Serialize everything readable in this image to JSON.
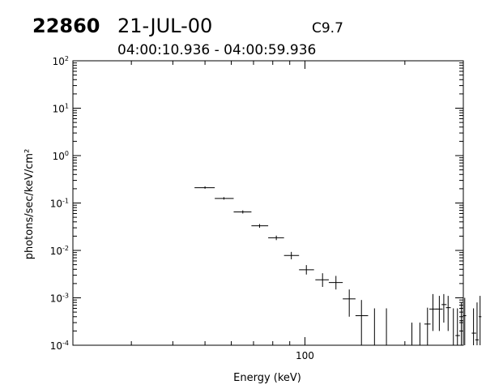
{
  "header": {
    "event_id": "22860",
    "date": "21-JUL-00",
    "goes_class": "C9.7",
    "time_range": "04:00:10.936 - 04:00:59.936"
  },
  "chart_data": {
    "type": "scatter",
    "title": "",
    "xlabel": "Energy (keV)",
    "ylabel": "photons/sec/keV/cm²",
    "x_scale": "log",
    "y_scale": "log",
    "xlim": [
      20,
      300
    ],
    "ylim": [
      0.0001,
      100
    ],
    "x_tick_labels": [
      "100"
    ],
    "y_tick_labels": [
      {
        "base": "10",
        "exp": "-4",
        "value": 0.0001
      },
      {
        "base": "10",
        "exp": "-3",
        "value": 0.001
      },
      {
        "base": "10",
        "exp": "-2",
        "value": 0.01
      },
      {
        "base": "10",
        "exp": "-1",
        "value": 0.1
      },
      {
        "base": "10",
        "exp": "0",
        "value": 1
      },
      {
        "base": "10",
        "exp": "1",
        "value": 10
      },
      {
        "base": "10",
        "exp": "2",
        "value": 100
      }
    ],
    "grid": false,
    "legend": "none",
    "series": [
      {
        "points": [
          {
            "x": 50,
            "x_lo": 46.5,
            "x_hi": 53.5,
            "y": 0.21,
            "y_lo": 0.2,
            "y_hi": 0.225
          },
          {
            "x": 57,
            "x_lo": 53.5,
            "x_hi": 61,
            "y": 0.125,
            "y_lo": 0.118,
            "y_hi": 0.133
          },
          {
            "x": 65,
            "x_lo": 61,
            "x_hi": 69,
            "y": 0.065,
            "y_lo": 0.06,
            "y_hi": 0.07
          },
          {
            "x": 73,
            "x_lo": 69,
            "x_hi": 77.5,
            "y": 0.033,
            "y_lo": 0.03,
            "y_hi": 0.036
          },
          {
            "x": 82,
            "x_lo": 77.5,
            "x_hi": 86.5,
            "y": 0.0185,
            "y_lo": 0.0165,
            "y_hi": 0.0205
          },
          {
            "x": 91,
            "x_lo": 86.5,
            "x_hi": 96,
            "y": 0.0078,
            "y_lo": 0.0065,
            "y_hi": 0.0093
          },
          {
            "x": 101,
            "x_lo": 96,
            "x_hi": 106.5,
            "y": 0.0039,
            "y_lo": 0.0031,
            "y_hi": 0.0049
          },
          {
            "x": 113,
            "x_lo": 107.5,
            "x_hi": 118,
            "y": 0.0024,
            "y_lo": 0.0017,
            "y_hi": 0.0033
          },
          {
            "x": 124,
            "x_lo": 118,
            "x_hi": 130,
            "y": 0.0021,
            "y_lo": 0.0015,
            "y_hi": 0.0029
          },
          {
            "x": 136,
            "x_lo": 130,
            "x_hi": 142,
            "y": 0.00095,
            "y_lo": 0.0004,
            "y_hi": 0.0015
          },
          {
            "x": 148,
            "x_lo": 142,
            "x_hi": 155,
            "y": 0.00042,
            "y_lo": 0.0001,
            "y_hi": 0.0009
          },
          {
            "x": 162,
            "y": 0.0001,
            "y_lo": 0.0001,
            "y_hi": 0.0006
          },
          {
            "x": 176,
            "y": 0.0001,
            "y_lo": 0.0001,
            "y_hi": 0.0006
          },
          {
            "x": 210,
            "y": 0.0001,
            "y_lo": 0.0001,
            "y_hi": 0.0003
          },
          {
            "x": 222,
            "y": 0.0001,
            "y_lo": 0.0001,
            "y_hi": 0.0003
          },
          {
            "x": 234,
            "x_lo": 229,
            "x_hi": 239,
            "y": 0.00028,
            "y_lo": 0.0001,
            "y_hi": 0.00062
          },
          {
            "x": 243,
            "x_lo": 237,
            "x_hi": 250,
            "y": 0.00058,
            "y_lo": 0.0002,
            "y_hi": 0.0012
          },
          {
            "x": 254,
            "x_lo": 249,
            "x_hi": 260,
            "y": 0.00058,
            "y_lo": 0.0002,
            "y_hi": 0.0011
          },
          {
            "x": 262,
            "x_lo": 258,
            "x_hi": 267,
            "y": 0.00072,
            "y_lo": 0.0003,
            "y_hi": 0.0012
          },
          {
            "x": 270,
            "x_lo": 266,
            "x_hi": 275,
            "y": 0.00062,
            "y_lo": 0.0002,
            "y_hi": 0.0011
          },
          {
            "x": 280,
            "x_lo": 276,
            "x_hi": 284,
            "y": 0.0001,
            "y_lo": 0.0001,
            "y_hi": 0.0006
          },
          {
            "x": 288,
            "x_lo": 284,
            "x_hi": 293,
            "y": 0.00016,
            "y_lo": 0.0001,
            "y_hi": 0.0006
          },
          {
            "x": 296,
            "x_lo": 292,
            "x_hi": 300,
            "y": 0.00033,
            "y_lo": 0.0001,
            "y_hi": 0.0008
          },
          {
            "x": 303,
            "x_lo": 299,
            "x_hi": 306,
            "y": 0.00042,
            "y_lo": 0.0001,
            "y_hi": 0.001
          },
          {
            "x": 322,
            "x_lo": 318,
            "x_hi": 328,
            "y": 0.00018,
            "y_lo": 0.0001,
            "y_hi": 0.0006
          },
          {
            "x": 330,
            "x_lo": 326,
            "x_hi": 334,
            "y": 0.00013,
            "y_lo": 0.0001,
            "y_hi": 0.0008
          },
          {
            "x": 337,
            "x_lo": 334,
            "x_hi": 340,
            "y": 0.0004,
            "y_lo": 0.0001,
            "y_hi": 0.0011
          }
        ]
      }
    ]
  }
}
